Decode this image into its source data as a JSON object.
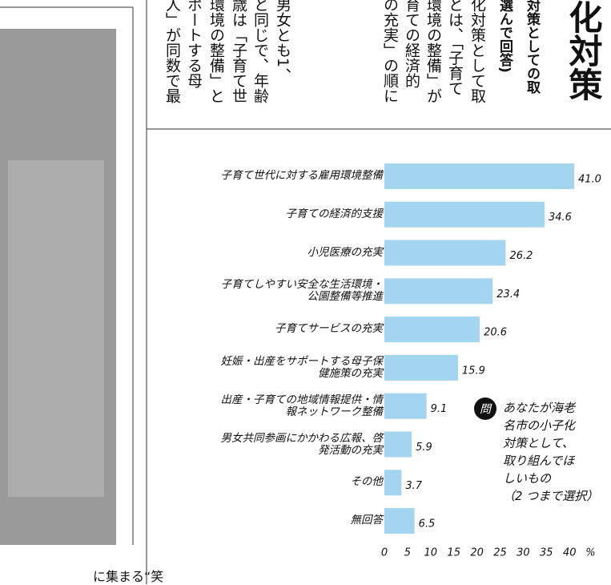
{
  "document": {
    "heading": "化対策",
    "subheading": [
      "対策としての取",
      "選んで回答)"
    ],
    "columns": [
      "化対策として取",
      "とは、「子育て",
      "環境の整備」が",
      "育ての経済的",
      "の充実」の順に",
      "男女とも1、",
      "と同じで、年齢",
      "歳は「子育て世",
      "環境の整備」と",
      "ポートする母",
      "人」が同数で最"
    ],
    "caption": "に集まる“笑"
  },
  "chart_data": {
    "type": "barh",
    "categories": [
      "子育て世代に対する雇用環境整備",
      "子育ての経済的支援",
      "小児医療の充実",
      "子育てしやすい安全な生活環境・\n公園整備等推進",
      "子育てサービスの充実",
      "妊娠・出産をサポートする母子保\n健施策の充実",
      "出産・子育ての地域情報提供・情\n報ネットワーク整備",
      "男女共同参画にかかわる広報、啓\n発活動の充実",
      "その他",
      "無回答"
    ],
    "values": [
      41.0,
      34.6,
      26.2,
      23.4,
      20.6,
      15.9,
      9.1,
      5.9,
      3.7,
      6.5
    ],
    "value_labels": [
      "41.0",
      "34.6",
      "26.2",
      "23.4",
      "20.6",
      "15.9",
      "9.1",
      "5.9",
      "3.7",
      "6.5"
    ],
    "color": "#a3d4f0",
    "xlim": [
      0,
      45
    ],
    "xticks": [
      0,
      5,
      10,
      15,
      20,
      25,
      30,
      35,
      40
    ],
    "xlabel": "%",
    "badge": "問",
    "annotation": "あなたが海老\n名市の小子化\n対策として、\n取り組んでほ\nしいもの\n（2 つまで選択）"
  }
}
